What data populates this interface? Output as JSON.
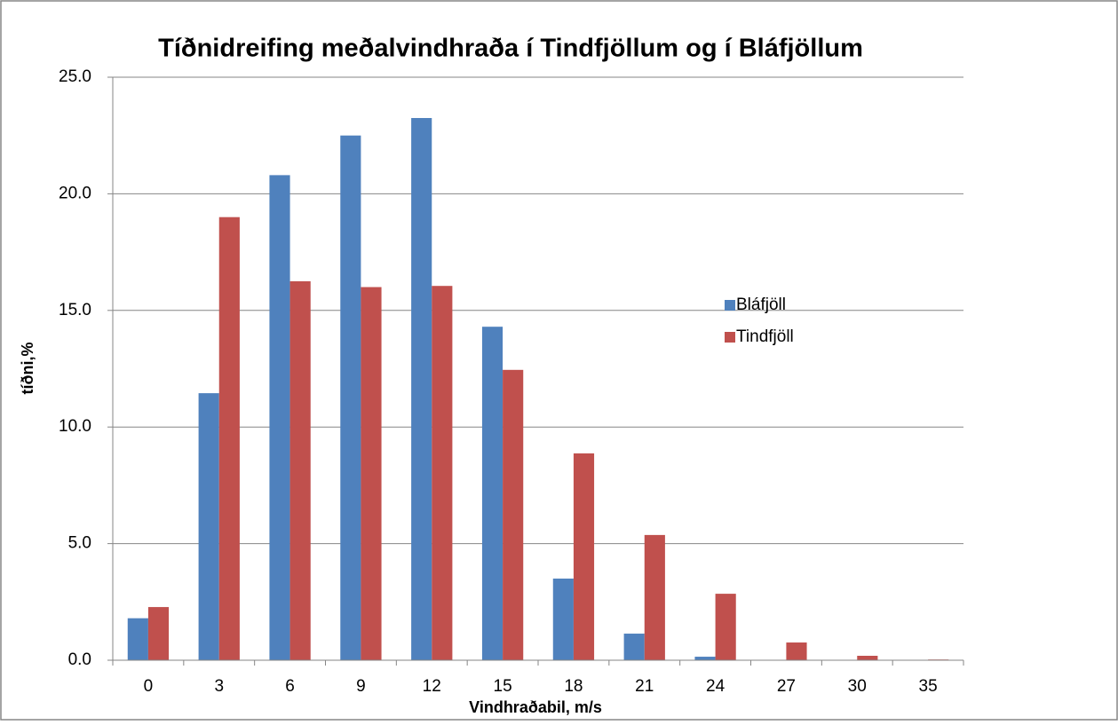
{
  "chart_data": {
    "type": "bar",
    "title": "Tíðnidreifing meðalvindhraða í Tindfjöllum og í Bláfjöllum",
    "xlabel": "Vindhraðabil, m/s",
    "ylabel": "tíðni,%",
    "categories": [
      "0",
      "3",
      "6",
      "9",
      "12",
      "15",
      "18",
      "21",
      "24",
      "27",
      "30",
      "35"
    ],
    "series": [
      {
        "name": "Bláfjöll",
        "color": "#4f81bd",
        "values": [
          1.8,
          11.45,
          20.8,
          22.5,
          23.25,
          14.3,
          3.5,
          1.14,
          0.15,
          0,
          0,
          0
        ]
      },
      {
        "name": "Tindfjöll",
        "color": "#c0504d",
        "values": [
          2.28,
          19.0,
          16.25,
          16.0,
          16.05,
          12.45,
          8.87,
          5.37,
          2.85,
          0.76,
          0.19,
          0.03
        ]
      }
    ],
    "ylim": [
      0,
      25
    ],
    "yticks": [
      {
        "value": 0,
        "label": "0.0"
      },
      {
        "value": 5,
        "label": "5.0"
      },
      {
        "value": 10,
        "label": "10.0"
      },
      {
        "value": 15,
        "label": "15.0"
      },
      {
        "value": 20,
        "label": "20.0"
      },
      {
        "value": 25,
        "label": "25.0"
      }
    ],
    "grid": true,
    "legend": "right"
  }
}
